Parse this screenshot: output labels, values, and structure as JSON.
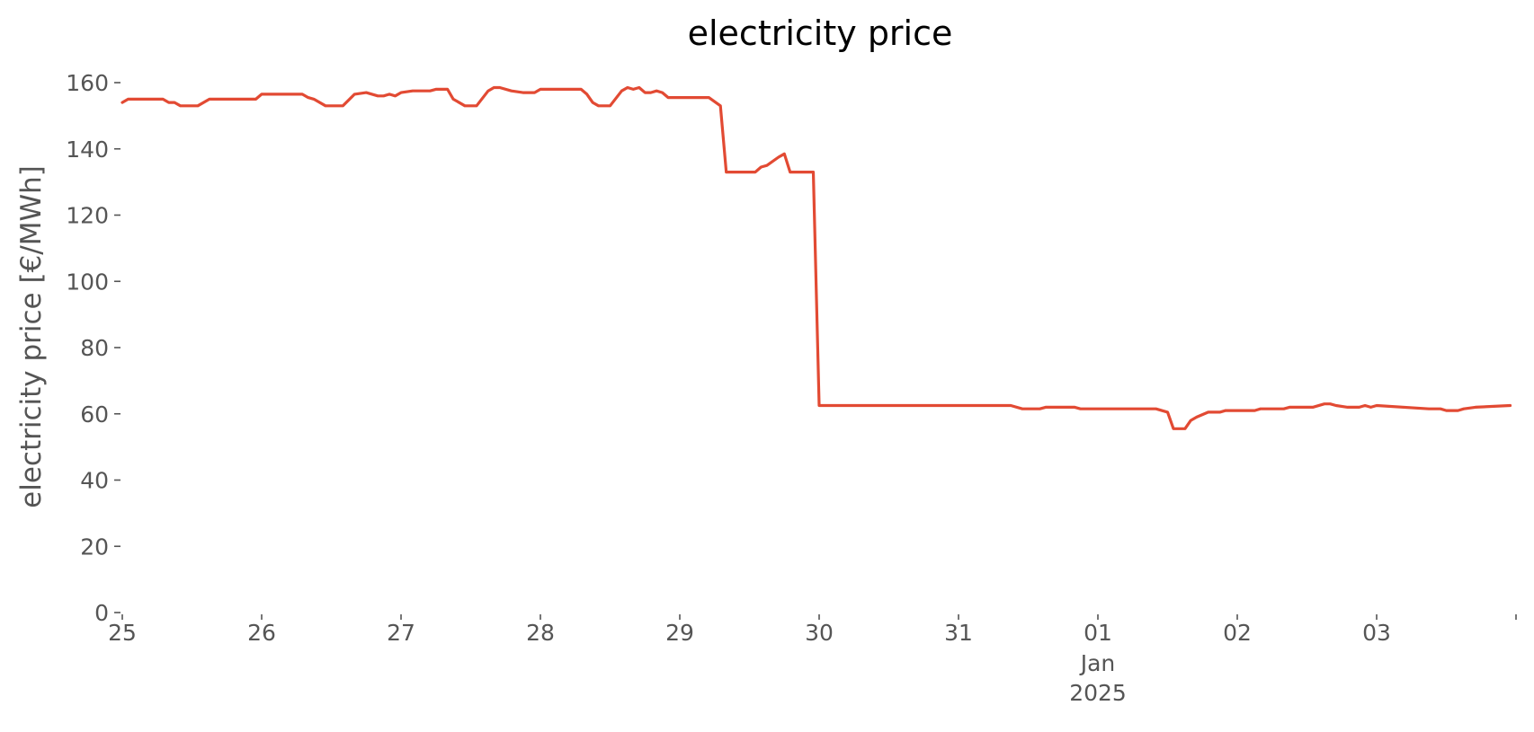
{
  "chart_data": {
    "type": "line",
    "title": "electricity price",
    "xlabel": "",
    "ylabel": "electricity price [€/MWh]",
    "x_axis_type": "date",
    "xlim": [
      "2024-12-25T00:00",
      "2025-01-04T00:00"
    ],
    "ylim": [
      0,
      160
    ],
    "yticks": [
      0,
      20,
      40,
      60,
      80,
      100,
      120,
      140,
      160
    ],
    "xticks": [
      {
        "x": "2024-12-25T00:00",
        "label": "25",
        "sublabel": "",
        "sublabel2": ""
      },
      {
        "x": "2024-12-26T00:00",
        "label": "26",
        "sublabel": "",
        "sublabel2": ""
      },
      {
        "x": "2024-12-27T00:00",
        "label": "27",
        "sublabel": "",
        "sublabel2": ""
      },
      {
        "x": "2024-12-28T00:00",
        "label": "28",
        "sublabel": "",
        "sublabel2": ""
      },
      {
        "x": "2024-12-29T00:00",
        "label": "29",
        "sublabel": "",
        "sublabel2": ""
      },
      {
        "x": "2024-12-30T00:00",
        "label": "30",
        "sublabel": "",
        "sublabel2": ""
      },
      {
        "x": "2024-12-31T00:00",
        "label": "31",
        "sublabel": "",
        "sublabel2": ""
      },
      {
        "x": "2025-01-01T00:00",
        "label": "01",
        "sublabel": "Jan",
        "sublabel2": "2025"
      },
      {
        "x": "2025-01-02T00:00",
        "label": "02",
        "sublabel": "",
        "sublabel2": ""
      },
      {
        "x": "2025-01-03T00:00",
        "label": "03",
        "sublabel": "",
        "sublabel2": ""
      },
      {
        "x": "2025-01-04T00:00",
        "label": "",
        "sublabel": "",
        "sublabel2": ""
      }
    ],
    "grid": false,
    "series": [
      {
        "color": "#E24A33",
        "points": [
          [
            "2024-12-25T00:00",
            154
          ],
          [
            "2024-12-25T01:00",
            155
          ],
          [
            "2024-12-25T07:00",
            155
          ],
          [
            "2024-12-25T08:00",
            154
          ],
          [
            "2024-12-25T09:00",
            154
          ],
          [
            "2024-12-25T10:00",
            153
          ],
          [
            "2024-12-25T13:00",
            153
          ],
          [
            "2024-12-25T15:00",
            155
          ],
          [
            "2024-12-25T18:00",
            155
          ],
          [
            "2024-12-25T23:00",
            155
          ],
          [
            "2024-12-26T00:00",
            156.5
          ],
          [
            "2024-12-26T07:00",
            156.5
          ],
          [
            "2024-12-26T08:00",
            155.5
          ],
          [
            "2024-12-26T09:00",
            155
          ],
          [
            "2024-12-26T11:00",
            153
          ],
          [
            "2024-12-26T14:00",
            153
          ],
          [
            "2024-12-26T16:00",
            156.5
          ],
          [
            "2024-12-26T18:00",
            157
          ],
          [
            "2024-12-26T20:00",
            156
          ],
          [
            "2024-12-26T21:00",
            156
          ],
          [
            "2024-12-26T22:00",
            156.5
          ],
          [
            "2024-12-26T23:00",
            156
          ],
          [
            "2024-12-27T00:00",
            157
          ],
          [
            "2024-12-27T02:00",
            157.5
          ],
          [
            "2024-12-27T05:00",
            157.5
          ],
          [
            "2024-12-27T06:00",
            158
          ],
          [
            "2024-12-27T08:00",
            158
          ],
          [
            "2024-12-27T09:00",
            155
          ],
          [
            "2024-12-27T11:00",
            153
          ],
          [
            "2024-12-27T13:00",
            153
          ],
          [
            "2024-12-27T15:00",
            157.5
          ],
          [
            "2024-12-27T16:00",
            158.5
          ],
          [
            "2024-12-27T17:00",
            158.5
          ],
          [
            "2024-12-27T19:00",
            157.5
          ],
          [
            "2024-12-27T21:00",
            157
          ],
          [
            "2024-12-27T23:00",
            157
          ],
          [
            "2024-12-28T00:00",
            158
          ],
          [
            "2024-12-28T07:00",
            158
          ],
          [
            "2024-12-28T08:00",
            156.5
          ],
          [
            "2024-12-28T09:00",
            154
          ],
          [
            "2024-12-28T10:00",
            153
          ],
          [
            "2024-12-28T12:00",
            153
          ],
          [
            "2024-12-28T14:00",
            157.5
          ],
          [
            "2024-12-28T15:00",
            158.5
          ],
          [
            "2024-12-28T16:00",
            158
          ],
          [
            "2024-12-28T17:00",
            158.5
          ],
          [
            "2024-12-28T18:00",
            157
          ],
          [
            "2024-12-28T19:00",
            157
          ],
          [
            "2024-12-28T20:00",
            157.5
          ],
          [
            "2024-12-28T21:00",
            157
          ],
          [
            "2024-12-28T22:00",
            155.5
          ],
          [
            "2024-12-29T00:00",
            155.5
          ],
          [
            "2024-12-29T03:00",
            155.5
          ],
          [
            "2024-12-29T05:00",
            155.5
          ],
          [
            "2024-12-29T07:00",
            153
          ],
          [
            "2024-12-29T08:00",
            133
          ],
          [
            "2024-12-29T13:00",
            133
          ],
          [
            "2024-12-29T14:00",
            134.5
          ],
          [
            "2024-12-29T15:00",
            135
          ],
          [
            "2024-12-29T17:00",
            137.5
          ],
          [
            "2024-12-29T18:00",
            138.5
          ],
          [
            "2024-12-29T19:00",
            133
          ],
          [
            "2024-12-29T22:00",
            133
          ],
          [
            "2024-12-29T23:00",
            133
          ],
          [
            "2024-12-30T00:00",
            62.5
          ],
          [
            "2024-12-31T09:00",
            62.5
          ],
          [
            "2024-12-31T11:00",
            61.5
          ],
          [
            "2024-12-31T14:00",
            61.5
          ],
          [
            "2024-12-31T15:00",
            62
          ],
          [
            "2024-12-31T20:00",
            62
          ],
          [
            "2024-12-31T21:00",
            61.5
          ],
          [
            "2025-01-01T10:00",
            61.5
          ],
          [
            "2025-01-01T12:00",
            60.5
          ],
          [
            "2025-01-01T13:00",
            55.5
          ],
          [
            "2025-01-01T15:00",
            55.5
          ],
          [
            "2025-01-01T16:00",
            58
          ],
          [
            "2025-01-01T17:00",
            59
          ],
          [
            "2025-01-01T19:00",
            60.5
          ],
          [
            "2025-01-01T21:00",
            60.5
          ],
          [
            "2025-01-01T22:00",
            61
          ],
          [
            "2025-01-02T03:00",
            61
          ],
          [
            "2025-01-02T04:00",
            61.5
          ],
          [
            "2025-01-02T08:00",
            61.5
          ],
          [
            "2025-01-02T09:00",
            62
          ],
          [
            "2025-01-02T10:00",
            62
          ],
          [
            "2025-01-02T13:00",
            62
          ],
          [
            "2025-01-02T15:00",
            63
          ],
          [
            "2025-01-02T16:00",
            63
          ],
          [
            "2025-01-02T17:00",
            62.5
          ],
          [
            "2025-01-02T19:00",
            62
          ],
          [
            "2025-01-02T21:00",
            62
          ],
          [
            "2025-01-02T22:00",
            62.5
          ],
          [
            "2025-01-02T23:00",
            62
          ],
          [
            "2025-01-03T00:00",
            62.5
          ],
          [
            "2025-01-03T09:00",
            61.5
          ],
          [
            "2025-01-03T11:00",
            61.5
          ],
          [
            "2025-01-03T12:00",
            61
          ],
          [
            "2025-01-03T14:00",
            61
          ],
          [
            "2025-01-03T15:00",
            61.5
          ],
          [
            "2025-01-03T17:00",
            62
          ],
          [
            "2025-01-03T23:00",
            62.5
          ]
        ]
      }
    ]
  }
}
